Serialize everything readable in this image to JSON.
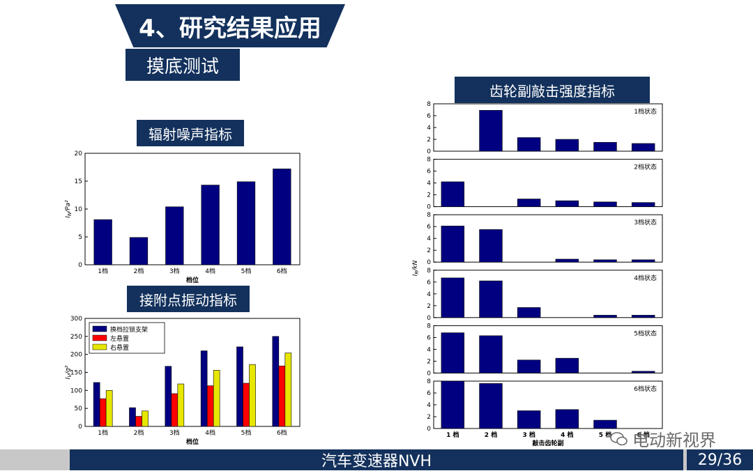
{
  "header": {
    "title": "4、研究结果应用",
    "subtitle": "摸底测试"
  },
  "footer": {
    "center": "汽车变速器NVH",
    "page": "29/36"
  },
  "watermark": "电动新视界",
  "colors": {
    "navy": "#13315c",
    "bar": "#000080",
    "red": "#ff0000",
    "yellow": "#e6e600"
  },
  "chart_data": [
    {
      "type": "bar",
      "panel_title": "辐射噪声指标",
      "categories": [
        "1档",
        "2档",
        "3档",
        "4档",
        "5档",
        "6档"
      ],
      "values": [
        8.1,
        4.9,
        10.4,
        14.3,
        14.9,
        17.2
      ],
      "xlabel": "档位",
      "ylabel": "I_N/Pa²",
      "ylim": [
        0,
        20
      ],
      "yticks": [
        0,
        5,
        10,
        15,
        20
      ]
    },
    {
      "type": "bar",
      "panel_title": "接附点振动指标",
      "categories": [
        "1档",
        "2档",
        "3档",
        "4档",
        "5档",
        "6档"
      ],
      "series": [
        {
          "name": "换档拉锁支架",
          "values": [
            122,
            52,
            167,
            210,
            221,
            250
          ]
        },
        {
          "name": "左悬置",
          "values": [
            77,
            28,
            91,
            113,
            120,
            168
          ]
        },
        {
          "name": "右悬置",
          "values": [
            100,
            43,
            118,
            156,
            172,
            204
          ]
        }
      ],
      "xlabel": "档位",
      "ylabel": "I_V/g²",
      "ylim": [
        0,
        300
      ],
      "yticks": [
        0,
        50,
        100,
        150,
        200,
        250,
        300
      ],
      "legend": "top-left"
    },
    {
      "type": "bar",
      "panel_title": "齿轮副敲击强度指标",
      "categories": [
        "1 档",
        "2 档",
        "3 档",
        "4 档",
        "5 档",
        "6 档"
      ],
      "xlabel": "敲击齿轮副",
      "ylabel": "I_R/kN",
      "ylim": [
        0,
        8
      ],
      "yticks": [
        0,
        2,
        4,
        6,
        8
      ],
      "panels": [
        {
          "name": "1档状态",
          "values": [
            0,
            6.9,
            2.3,
            2.0,
            1.5,
            1.3
          ]
        },
        {
          "name": "2档状态",
          "values": [
            4.2,
            0,
            1.3,
            1.0,
            0.8,
            0.7
          ]
        },
        {
          "name": "3档状态",
          "values": [
            6.1,
            5.5,
            0,
            0.5,
            0.4,
            0.4
          ]
        },
        {
          "name": "4档状态",
          "values": [
            6.7,
            6.2,
            1.7,
            0,
            0.4,
            0.4
          ]
        },
        {
          "name": "5档状态",
          "values": [
            6.8,
            6.3,
            2.2,
            2.5,
            0,
            0.3
          ]
        },
        {
          "name": "6档状态",
          "values": [
            8.0,
            7.6,
            3.0,
            3.2,
            1.4,
            0
          ]
        }
      ]
    }
  ]
}
